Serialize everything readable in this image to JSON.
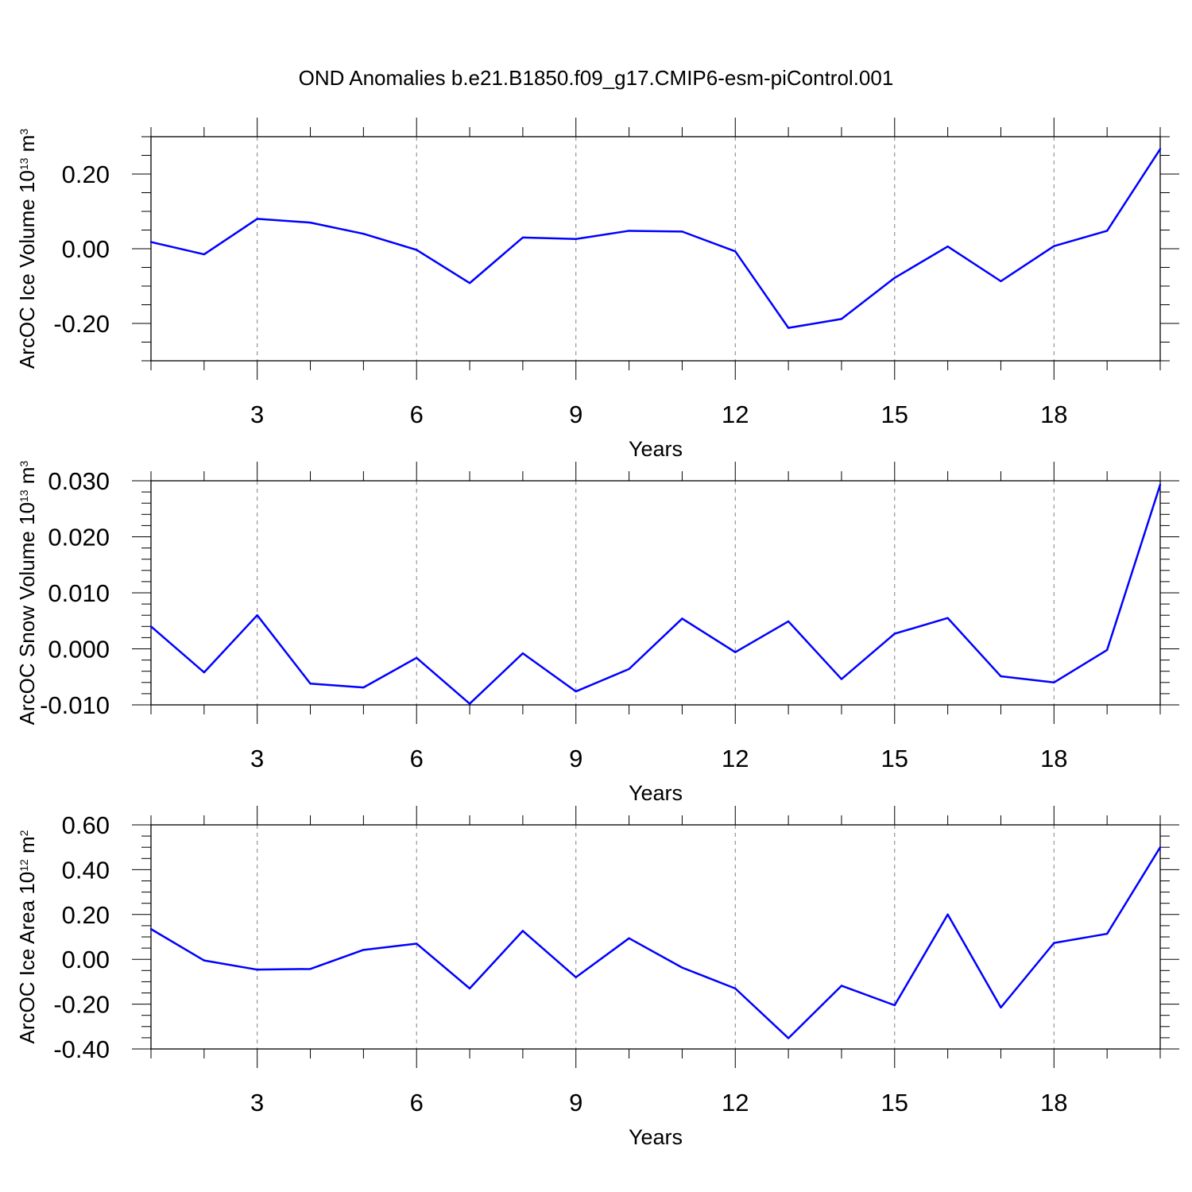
{
  "figure_title": "OND Anomalies b.e21.B1850.f09_g17.CMIP6-esm-piControl.001",
  "colors": {
    "line": "#0000ff",
    "axis": "#000000",
    "grid": "#808080",
    "background": "#ffffff"
  },
  "chart_data": [
    {
      "type": "line",
      "title": "OND Anomalies b.e21.B1850.f09_g17.CMIP6-esm-piControl.001",
      "xlabel": "Years",
      "ylabel": {
        "prefix": "ArcOC Ice Volume 10",
        "exp": "13",
        "unit": " m",
        "unit_exp": "3"
      },
      "xlim": [
        1,
        20
      ],
      "ylim": [
        -0.3,
        0.3
      ],
      "x_ticks": [
        3,
        6,
        9,
        12,
        15,
        18
      ],
      "x_tick_labels": [
        "3",
        "6",
        "9",
        "12",
        "15",
        "18"
      ],
      "y_ticks": [
        -0.2,
        0.0,
        0.2
      ],
      "y_tick_labels": [
        "-0.20",
        "0.00",
        "0.20"
      ],
      "y_minor_step": 0.05,
      "grid": "vertical dashed at major x ticks",
      "series": [
        {
          "name": "ArcOC Ice Volume",
          "x": [
            1,
            2,
            3,
            4,
            5,
            6,
            7,
            8,
            9,
            10,
            11,
            12,
            13,
            14,
            15,
            16,
            17,
            18,
            19,
            20
          ],
          "values": [
            0.018,
            -0.015,
            0.08,
            0.07,
            0.04,
            -0.003,
            -0.092,
            0.03,
            0.026,
            0.048,
            0.046,
            -0.007,
            -0.212,
            -0.188,
            -0.078,
            0.006,
            -0.087,
            0.007,
            0.048,
            0.267
          ]
        }
      ]
    },
    {
      "type": "line",
      "title": "",
      "xlabel": "Years",
      "ylabel": {
        "prefix": "ArcOC Snow Volume 10",
        "exp": "13",
        "unit": " m",
        "unit_exp": "3"
      },
      "xlim": [
        1,
        20
      ],
      "ylim": [
        -0.01,
        0.03
      ],
      "x_ticks": [
        3,
        6,
        9,
        12,
        15,
        18
      ],
      "x_tick_labels": [
        "3",
        "6",
        "9",
        "12",
        "15",
        "18"
      ],
      "y_ticks": [
        -0.01,
        0.0,
        0.01,
        0.02,
        0.03
      ],
      "y_tick_labels": [
        "-0.010",
        "0.000",
        "0.010",
        "0.020",
        "0.030"
      ],
      "y_minor_step": 0.002,
      "grid": "vertical dashed at major x ticks",
      "series": [
        {
          "name": "ArcOC Snow Volume",
          "x": [
            1,
            2,
            3,
            4,
            5,
            6,
            7,
            8,
            9,
            10,
            11,
            12,
            13,
            14,
            15,
            16,
            17,
            18,
            19,
            20
          ],
          "values": [
            0.004,
            -0.0042,
            0.006,
            -0.0062,
            -0.0069,
            -0.0016,
            -0.0098,
            -0.0008,
            -0.0076,
            -0.0036,
            0.0054,
            -0.0006,
            0.0049,
            -0.0054,
            0.0027,
            0.0055,
            -0.0049,
            -0.006,
            -0.0002,
            0.0293
          ]
        }
      ]
    },
    {
      "type": "line",
      "title": "",
      "xlabel": "Years",
      "ylabel": {
        "prefix": "ArcOC Ice Area 10",
        "exp": "12",
        "unit": " m",
        "unit_exp": "2"
      },
      "xlim": [
        1,
        20
      ],
      "ylim": [
        -0.4,
        0.6
      ],
      "x_ticks": [
        3,
        6,
        9,
        12,
        15,
        18
      ],
      "x_tick_labels": [
        "3",
        "6",
        "9",
        "12",
        "15",
        "18"
      ],
      "y_ticks": [
        -0.4,
        -0.2,
        0.0,
        0.2,
        0.4,
        0.6
      ],
      "y_tick_labels": [
        "-0.40",
        "-0.20",
        "0.00",
        "0.20",
        "0.40",
        "0.60"
      ],
      "y_minor_step": 0.05,
      "grid": "vertical dashed at major x ticks",
      "series": [
        {
          "name": "ArcOC Ice Area",
          "x": [
            1,
            2,
            3,
            4,
            5,
            6,
            7,
            8,
            9,
            10,
            11,
            12,
            13,
            14,
            15,
            16,
            17,
            18,
            19,
            20
          ],
          "values": [
            0.135,
            -0.005,
            -0.046,
            -0.043,
            0.042,
            0.07,
            -0.13,
            0.127,
            -0.08,
            0.094,
            -0.037,
            -0.13,
            -0.352,
            -0.118,
            -0.205,
            0.2,
            -0.215,
            0.073,
            0.114,
            0.5
          ]
        }
      ]
    }
  ]
}
